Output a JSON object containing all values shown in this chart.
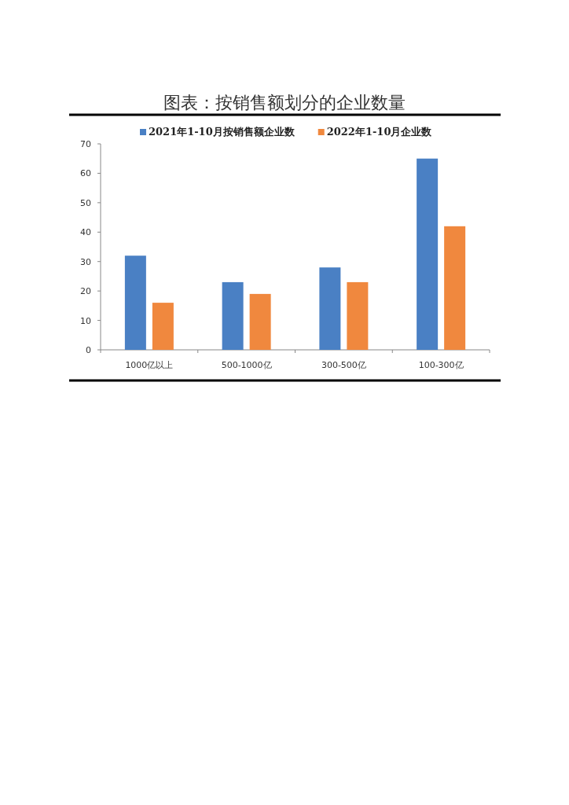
{
  "chart_data": {
    "type": "bar",
    "title": "图表：按销售额划分的企业数量",
    "categories": [
      "1000亿以上",
      "500-1000亿",
      "300-500亿",
      "100-300亿"
    ],
    "series": [
      {
        "name": "2021年1-10月按销售额企业数",
        "color": "#4a80c4",
        "values": [
          32,
          23,
          28,
          65
        ]
      },
      {
        "name": "2022年1-10月企业数",
        "color": "#f0883e",
        "values": [
          16,
          19,
          23,
          42
        ]
      }
    ],
    "ylim": [
      0,
      70
    ],
    "yticks": [
      0,
      10,
      20,
      30,
      40,
      50,
      60,
      70
    ],
    "grid": false,
    "legend": "top"
  }
}
